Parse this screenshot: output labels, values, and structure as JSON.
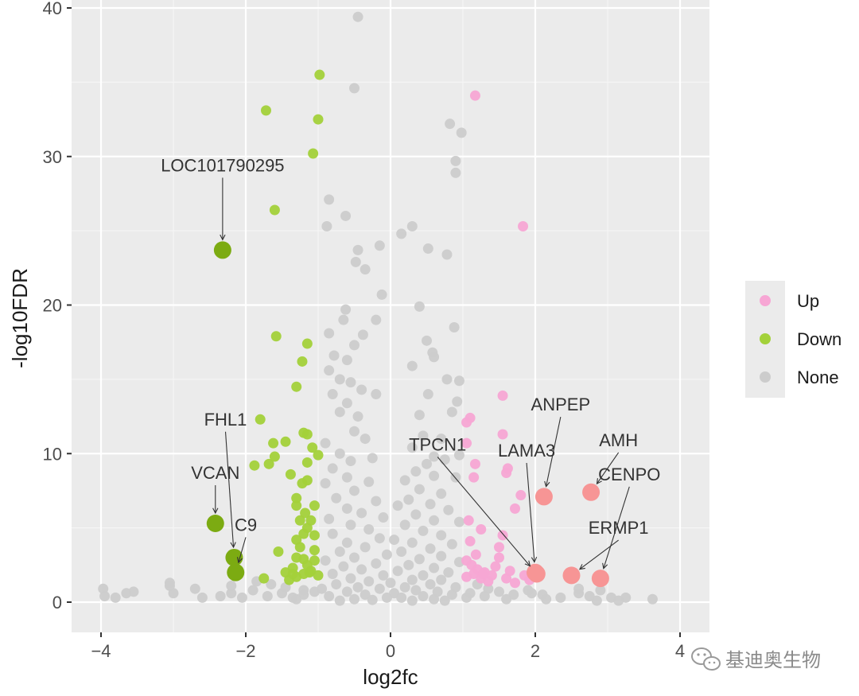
{
  "chart_data": {
    "type": "scatter",
    "xlabel": "log2fc",
    "ylabel": "-log10FDR",
    "xlim": [
      -4.35,
      4.35
    ],
    "ylim": [
      -2,
      40
    ],
    "x_ticks": [
      -4,
      -2,
      0,
      2,
      4
    ],
    "y_ticks": [
      0,
      10,
      20,
      30,
      40
    ],
    "x_tick_labels": [
      "−4",
      "−2",
      "0",
      "2",
      "4"
    ],
    "y_tick_labels": [
      "0",
      "10",
      "20",
      "30",
      "40"
    ],
    "grid": true,
    "legend_position": "right",
    "series": [
      {
        "name": "Up",
        "color": "#f7a6d4",
        "points": [
          [
            1.17,
            34.1
          ],
          [
            1.83,
            25.3
          ],
          [
            1.55,
            13.9
          ],
          [
            1.55,
            11.3
          ],
          [
            1.1,
            12.4
          ],
          [
            1.05,
            12.1
          ],
          [
            1.05,
            10.7
          ],
          [
            1.17,
            9.3
          ],
          [
            1.6,
            8.7
          ],
          [
            1.62,
            9.0
          ],
          [
            1.15,
            8.4
          ],
          [
            1.72,
            6.3
          ],
          [
            1.8,
            7.2
          ],
          [
            1.55,
            4.5
          ],
          [
            1.25,
            4.9
          ],
          [
            1.1,
            4.1
          ],
          [
            1.5,
            3.7
          ],
          [
            1.5,
            3.0
          ],
          [
            1.05,
            2.8
          ],
          [
            1.12,
            2.5
          ],
          [
            1.2,
            2.2
          ],
          [
            1.3,
            2.0
          ],
          [
            1.4,
            1.8
          ],
          [
            1.6,
            1.6
          ],
          [
            1.15,
            1.9
          ],
          [
            1.25,
            1.6
          ],
          [
            1.35,
            1.4
          ],
          [
            1.05,
            1.7
          ],
          [
            1.45,
            2.4
          ],
          [
            1.65,
            2.1
          ],
          [
            1.85,
            1.8
          ],
          [
            1.08,
            5.5
          ],
          [
            1.28,
            1.9
          ],
          [
            1.72,
            1.3
          ],
          [
            1.92,
            1.5
          ],
          [
            1.18,
            3.2
          ]
        ]
      },
      {
        "name": "Down",
        "color": "#a3d13a",
        "points": [
          [
            -1.72,
            33.1
          ],
          [
            -0.98,
            35.5
          ],
          [
            -1.0,
            32.5
          ],
          [
            -1.07,
            30.2
          ],
          [
            -1.6,
            26.4
          ],
          [
            -1.58,
            17.9
          ],
          [
            -1.15,
            17.4
          ],
          [
            -1.22,
            16.2
          ],
          [
            -1.3,
            14.5
          ],
          [
            -1.8,
            12.3
          ],
          [
            -1.62,
            10.7
          ],
          [
            -1.45,
            10.8
          ],
          [
            -1.2,
            11.4
          ],
          [
            -1.15,
            11.3
          ],
          [
            -1.08,
            10.4
          ],
          [
            -1.88,
            9.2
          ],
          [
            -1.68,
            9.3
          ],
          [
            -1.6,
            9.8
          ],
          [
            -1.15,
            9.4
          ],
          [
            -1.0,
            9.9
          ],
          [
            -1.38,
            8.6
          ],
          [
            -1.15,
            8.2
          ],
          [
            -1.22,
            8.0
          ],
          [
            -1.3,
            7.0
          ],
          [
            -1.3,
            6.5
          ],
          [
            -1.18,
            6.0
          ],
          [
            -1.05,
            6.5
          ],
          [
            -1.15,
            5.0
          ],
          [
            -1.2,
            4.6
          ],
          [
            -1.3,
            4.2
          ],
          [
            -1.25,
            3.7
          ],
          [
            -1.05,
            3.5
          ],
          [
            -1.55,
            3.4
          ],
          [
            -1.2,
            2.9
          ],
          [
            -1.35,
            2.3
          ],
          [
            -1.45,
            2.0
          ],
          [
            -1.3,
            1.7
          ],
          [
            -1.1,
            2.1
          ],
          [
            -1.75,
            1.6
          ],
          [
            -1.4,
            1.5
          ],
          [
            -1.2,
            1.9
          ],
          [
            -1.0,
            1.8
          ],
          [
            -1.05,
            4.5
          ],
          [
            -1.1,
            5.5
          ],
          [
            -1.25,
            5.5
          ],
          [
            -1.3,
            3.0
          ],
          [
            -1.15,
            2.5
          ],
          [
            -1.05,
            2.8
          ],
          [
            -1.12,
            2.0
          ],
          [
            -1.35,
            1.9
          ]
        ]
      },
      {
        "name": "None",
        "color": "#cccccc",
        "points": [
          [
            -0.45,
            39.4
          ],
          [
            -0.5,
            34.6
          ],
          [
            0.82,
            32.2
          ],
          [
            0.98,
            31.6
          ],
          [
            0.9,
            29.7
          ],
          [
            0.9,
            28.9
          ],
          [
            -0.85,
            27.1
          ],
          [
            -0.62,
            26.0
          ],
          [
            -0.88,
            25.3
          ],
          [
            0.15,
            24.8
          ],
          [
            0.3,
            25.3
          ],
          [
            -0.45,
            23.7
          ],
          [
            -0.15,
            24.0
          ],
          [
            -0.48,
            22.9
          ],
          [
            -0.35,
            22.4
          ],
          [
            0.52,
            23.8
          ],
          [
            0.78,
            23.4
          ],
          [
            -0.12,
            20.7
          ],
          [
            -0.62,
            19.7
          ],
          [
            -0.65,
            19.0
          ],
          [
            0.4,
            19.9
          ],
          [
            -0.2,
            19.0
          ],
          [
            -0.85,
            18.1
          ],
          [
            -0.38,
            18.0
          ],
          [
            0.88,
            18.5
          ],
          [
            -0.5,
            17.3
          ],
          [
            -0.78,
            16.6
          ],
          [
            -0.6,
            16.3
          ],
          [
            0.5,
            17.6
          ],
          [
            0.58,
            16.8
          ],
          [
            0.6,
            16.5
          ],
          [
            0.3,
            15.9
          ],
          [
            -0.85,
            15.6
          ],
          [
            -0.7,
            15.0
          ],
          [
            -0.55,
            14.8
          ],
          [
            -0.4,
            14.3
          ],
          [
            -0.2,
            14.0
          ],
          [
            0.78,
            15.0
          ],
          [
            0.95,
            14.9
          ],
          [
            -0.8,
            14.0
          ],
          [
            -0.6,
            13.4
          ],
          [
            0.52,
            14.0
          ],
          [
            0.92,
            13.5
          ],
          [
            -0.7,
            12.8
          ],
          [
            -0.45,
            12.5
          ],
          [
            0.4,
            12.6
          ],
          [
            0.85,
            12.8
          ],
          [
            -0.5,
            11.5
          ],
          [
            -0.35,
            11.0
          ],
          [
            0.45,
            11.2
          ],
          [
            0.7,
            11.0
          ],
          [
            -0.9,
            10.7
          ],
          [
            0.3,
            10.4
          ],
          [
            -0.7,
            10.0
          ],
          [
            0.6,
            9.8
          ],
          [
            0.95,
            9.9
          ],
          [
            -0.55,
            9.5
          ],
          [
            -0.25,
            9.7
          ],
          [
            0.5,
            9.3
          ],
          [
            0.75,
            9.6
          ],
          [
            -0.8,
            9.0
          ],
          [
            0.35,
            8.8
          ],
          [
            0.6,
            8.5
          ],
          [
            -0.6,
            8.4
          ],
          [
            0.9,
            8.4
          ],
          [
            -0.9,
            8.0
          ],
          [
            -0.3,
            8.1
          ],
          [
            0.2,
            8.2
          ],
          [
            -0.5,
            7.5
          ],
          [
            0.4,
            7.6
          ],
          [
            0.7,
            7.3
          ],
          [
            -0.75,
            7.0
          ],
          [
            -0.2,
            6.8
          ],
          [
            0.25,
            6.9
          ],
          [
            0.55,
            6.6
          ],
          [
            -0.6,
            6.3
          ],
          [
            0.1,
            6.5
          ],
          [
            0.8,
            6.2
          ],
          [
            -0.4,
            6.0
          ],
          [
            0.35,
            5.9
          ],
          [
            -0.85,
            5.6
          ],
          [
            -0.1,
            5.7
          ],
          [
            0.6,
            5.5
          ],
          [
            0.95,
            5.4
          ],
          [
            -0.55,
            5.2
          ],
          [
            0.2,
            5.2
          ],
          [
            -0.3,
            4.9
          ],
          [
            0.45,
            4.8
          ],
          [
            -0.8,
            4.6
          ],
          [
            0.7,
            4.5
          ],
          [
            -0.15,
            4.3
          ],
          [
            0.05,
            4.2
          ],
          [
            -0.6,
            4.0
          ],
          [
            0.3,
            4.0
          ],
          [
            0.85,
            3.9
          ],
          [
            -0.35,
            3.7
          ],
          [
            0.55,
            3.6
          ],
          [
            -0.7,
            3.4
          ],
          [
            0.15,
            3.4
          ],
          [
            -0.05,
            3.2
          ],
          [
            0.7,
            3.1
          ],
          [
            -0.5,
            3.0
          ],
          [
            0.4,
            2.9
          ],
          [
            -0.9,
            2.8
          ],
          [
            0.95,
            2.7
          ],
          [
            -0.2,
            2.6
          ],
          [
            0.25,
            2.5
          ],
          [
            -0.65,
            2.4
          ],
          [
            0.6,
            2.3
          ],
          [
            -0.4,
            2.2
          ],
          [
            0.1,
            2.1
          ],
          [
            0.8,
            2.0
          ],
          [
            -0.8,
            1.9
          ],
          [
            -0.1,
            1.8
          ],
          [
            0.45,
            1.8
          ],
          [
            -0.55,
            1.6
          ],
          [
            0.3,
            1.5
          ],
          [
            0.7,
            1.5
          ],
          [
            -0.3,
            1.4
          ],
          [
            0.0,
            1.3
          ],
          [
            -0.75,
            1.2
          ],
          [
            0.55,
            1.2
          ],
          [
            -0.45,
            1.0
          ],
          [
            0.2,
            1.0
          ],
          [
            0.9,
            1.0
          ],
          [
            -0.95,
            0.9
          ],
          [
            -0.15,
            0.9
          ],
          [
            0.35,
            0.8
          ],
          [
            -0.6,
            0.7
          ],
          [
            0.65,
            0.7
          ],
          [
            0.05,
            0.6
          ],
          [
            -0.35,
            0.5
          ],
          [
            0.85,
            0.5
          ],
          [
            -0.85,
            0.4
          ],
          [
            0.45,
            0.4
          ],
          [
            -0.05,
            0.3
          ],
          [
            0.15,
            0.3
          ],
          [
            -0.5,
            0.2
          ],
          [
            0.6,
            0.2
          ],
          [
            -0.25,
            0.15
          ],
          [
            0.3,
            0.1
          ],
          [
            -0.7,
            0.1
          ],
          [
            0.75,
            0.1
          ],
          [
            1.2,
            1.2
          ],
          [
            1.35,
            0.9
          ],
          [
            1.5,
            0.7
          ],
          [
            1.7,
            0.5
          ],
          [
            1.9,
            0.8
          ],
          [
            2.1,
            0.5
          ],
          [
            2.35,
            0.3
          ],
          [
            2.6,
            0.6
          ],
          [
            2.9,
            0.8
          ],
          [
            3.05,
            0.3
          ],
          [
            3.25,
            0.3
          ],
          [
            3.62,
            0.2
          ],
          [
            2.85,
            0.1
          ],
          [
            3.15,
            0.1
          ],
          [
            2.15,
            0.2
          ],
          [
            1.95,
            0.6
          ],
          [
            1.6,
            0.2
          ],
          [
            1.3,
            0.4
          ],
          [
            1.1,
            0.6
          ],
          [
            1.05,
            0.3
          ],
          [
            2.6,
            0.9
          ],
          [
            2.75,
            0.4
          ],
          [
            -1.05,
            0.7
          ],
          [
            -1.2,
            0.5
          ],
          [
            -1.35,
            0.3
          ],
          [
            -1.5,
            0.6
          ],
          [
            -1.7,
            0.4
          ],
          [
            -1.9,
            0.8
          ],
          [
            -2.05,
            0.3
          ],
          [
            -2.2,
            0.6
          ],
          [
            -2.35,
            0.4
          ],
          [
            -2.6,
            0.3
          ],
          [
            -3.0,
            0.6
          ],
          [
            -3.05,
            1.1
          ],
          [
            -3.05,
            1.3
          ],
          [
            -3.55,
            0.7
          ],
          [
            -3.65,
            0.6
          ],
          [
            -3.8,
            0.3
          ],
          [
            -3.95,
            0.4
          ],
          [
            -3.97,
            0.9
          ],
          [
            -2.2,
            1.1
          ],
          [
            -2.7,
            0.9
          ],
          [
            -1.45,
            1.0
          ],
          [
            -1.65,
            1.2
          ],
          [
            -1.2,
            0.8
          ],
          [
            -1.85,
            1.4
          ],
          [
            -1.3,
            0.2
          ]
        ]
      }
    ],
    "highlighted": [
      {
        "label": "LOC101790295",
        "x": -2.32,
        "y": 23.7,
        "group": "Down",
        "color": "#7cab12"
      },
      {
        "label": "VCAN",
        "x": -2.42,
        "y": 5.3,
        "group": "Down",
        "color": "#7cab12"
      },
      {
        "label": "FHL1",
        "x": -2.16,
        "y": 3.0,
        "group": "Down",
        "color": "#7cab12"
      },
      {
        "label": "C9",
        "x": -2.14,
        "y": 2.0,
        "group": "Down",
        "color": "#7cab12"
      },
      {
        "label": "TPCN1",
        "x": 2.02,
        "y": 1.9,
        "group": "Up",
        "color": "#f79595"
      },
      {
        "label": "LAMA3",
        "x": 2.0,
        "y": 2.0,
        "group": "Up",
        "color": "#f79595"
      },
      {
        "label": "ANPEP",
        "x": 2.12,
        "y": 7.1,
        "group": "Up",
        "color": "#f79595"
      },
      {
        "label": "AMH",
        "x": 2.77,
        "y": 7.4,
        "group": "Up",
        "color": "#f79595"
      },
      {
        "label": "CENPO",
        "x": 2.9,
        "y": 1.6,
        "group": "Up",
        "color": "#f79595"
      },
      {
        "label": "ERMP1",
        "x": 2.5,
        "y": 1.8,
        "group": "Up",
        "color": "#f79595"
      }
    ],
    "label_placement": [
      {
        "label": "LOC101790295",
        "lx": -2.32,
        "ly": 29.0
      },
      {
        "label": "VCAN",
        "lx": -2.42,
        "ly": 8.3
      },
      {
        "label": "FHL1",
        "lx": -2.28,
        "ly": 11.9
      },
      {
        "label": "C9",
        "lx": -2.0,
        "ly": 4.8
      },
      {
        "label": "TPCN1",
        "lx": 0.65,
        "ly": 10.2
      },
      {
        "label": "LAMA3",
        "lx": 1.88,
        "ly": 9.8
      },
      {
        "label": "ANPEP",
        "lx": 2.35,
        "ly": 12.9
      },
      {
        "label": "AMH",
        "lx": 3.15,
        "ly": 10.5
      },
      {
        "label": "CENPO",
        "lx": 3.3,
        "ly": 8.2
      },
      {
        "label": "ERMP1",
        "lx": 3.15,
        "ly": 4.6
      }
    ]
  },
  "legend": {
    "items": [
      {
        "label": "Up",
        "color": "#f7a6d4"
      },
      {
        "label": "Down",
        "color": "#a3d13a"
      },
      {
        "label": "None",
        "color": "#cccccc"
      }
    ]
  },
  "watermark": {
    "text": "基迪奥生物",
    "icon": "wechat-icon"
  }
}
